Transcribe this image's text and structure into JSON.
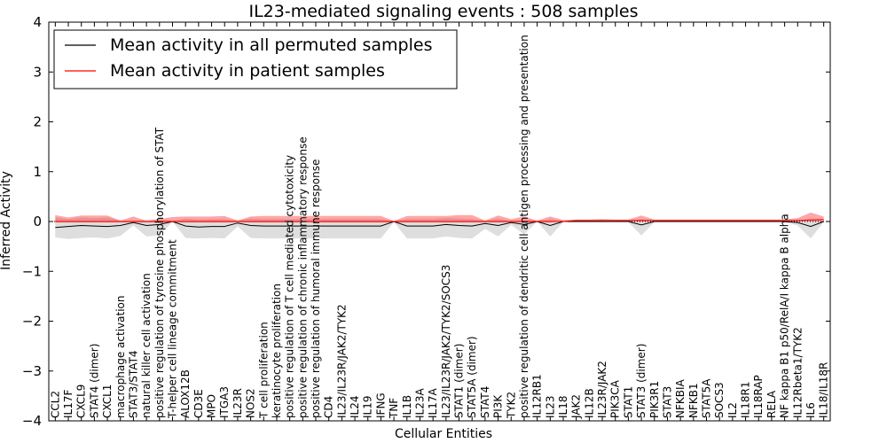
{
  "chart_data": {
    "type": "line",
    "title": "IL23-mediated signaling events : 508 samples",
    "xlabel": "Cellular Entities",
    "ylabel": "Inferred Activity",
    "ylim": [
      -4,
      4
    ],
    "yticks": [
      -4,
      -3,
      -2,
      -1,
      0,
      1,
      2,
      3,
      4
    ],
    "ytick_labels": [
      "−4",
      "−3",
      "−2",
      "−1",
      "0",
      "1",
      "2",
      "3",
      "4"
    ],
    "legend_position": "top-left",
    "categories": [
      "CCL2",
      "IL17F",
      "CXCL9",
      "STAT4 (dimer)",
      "CXCL1",
      "macrophage activation",
      "STAT3/STAT4",
      "natural killer cell activation",
      "positive regulation of tyrosine phosphorylation of STAT",
      "T-helper cell lineage commitment",
      "ALOX12B",
      "CD3E",
      "MPO",
      "ITGA3",
      "IL23R",
      "NOS2",
      "T cell proliferation",
      "keratinocyte proliferation",
      "positive regulation of T cell mediated cytotoxicity",
      "positive regulation of chronic inflammatory response",
      "positive regulation of humoral immune response",
      "CD4",
      "IL23/IL23R/JAK2/TYK2",
      "IL24",
      "IL19",
      "IFNG",
      "TNF",
      "IL1B",
      "IL23A",
      "IL17A",
      "IL23/IL23R/JAK2/TYK2/SOCS3",
      "STAT1 (dimer)",
      "STAT5A (dimer)",
      "STAT4",
      "PI3K",
      "TYK2",
      "positive regulation of dendritic cell antigen processing and presentation",
      "IL12RB1",
      "IL23",
      "IL18",
      "JAK2",
      "IL12B",
      "IL23R/JAK2",
      "PIK3CA",
      "STAT1",
      "STAT3 (dimer)",
      "PIK3R1",
      "STAT3",
      "NFKBIA",
      "NFKB1",
      "STAT5A",
      "SOCS3",
      "IL2",
      "IL18R1",
      "IL18RAP",
      "RELA",
      "NF kappa B1 p50/RelA/I kappa B alpha",
      "IL12Rbeta1/TYK2",
      "IL6",
      "IL18/IL18R"
    ],
    "series": [
      {
        "name": "Mean activity in all permuted samples",
        "color": "#000000",
        "values": [
          -0.12,
          -0.1,
          -0.08,
          -0.09,
          -0.1,
          -0.08,
          -0.02,
          -0.08,
          -0.06,
          0.0,
          -0.09,
          -0.11,
          -0.1,
          -0.1,
          -0.03,
          -0.08,
          -0.09,
          -0.09,
          -0.09,
          -0.09,
          -0.09,
          -0.09,
          -0.09,
          -0.09,
          -0.09,
          -0.09,
          0.0,
          -0.09,
          -0.09,
          -0.09,
          -0.06,
          -0.08,
          -0.09,
          -0.04,
          -0.08,
          -0.02,
          -0.06,
          0.0,
          -0.08,
          0.0,
          0.0,
          0.0,
          0.0,
          0.0,
          0.0,
          -0.07,
          0.0,
          0.0,
          0.0,
          0.0,
          0.0,
          0.0,
          0.0,
          0.0,
          0.0,
          0.0,
          0.0,
          -0.02,
          -0.1,
          0.0
        ],
        "band_low": [
          -0.32,
          -0.35,
          -0.33,
          -0.32,
          -0.34,
          -0.29,
          -0.08,
          -0.3,
          -0.28,
          0.0,
          -0.33,
          -0.34,
          -0.33,
          -0.34,
          -0.1,
          -0.33,
          -0.34,
          -0.34,
          -0.34,
          -0.34,
          -0.34,
          -0.34,
          -0.34,
          -0.34,
          -0.34,
          -0.34,
          -0.01,
          -0.34,
          -0.34,
          -0.34,
          -0.3,
          -0.33,
          -0.34,
          -0.15,
          -0.3,
          -0.07,
          -0.26,
          0.0,
          -0.3,
          -0.01,
          -0.01,
          -0.01,
          -0.01,
          -0.01,
          -0.01,
          -0.28,
          -0.01,
          -0.01,
          -0.01,
          -0.01,
          -0.01,
          -0.01,
          -0.01,
          -0.01,
          -0.01,
          -0.01,
          -0.01,
          -0.08,
          -0.34,
          -0.01
        ],
        "band_high": [
          0.08,
          0.05,
          0.08,
          0.07,
          0.08,
          0.02,
          0.01,
          0.04,
          0.05,
          0.01,
          0.06,
          0.04,
          0.05,
          0.05,
          0.02,
          0.06,
          0.05,
          0.05,
          0.05,
          0.05,
          0.05,
          0.05,
          0.05,
          0.05,
          0.05,
          0.05,
          0.01,
          0.05,
          0.05,
          0.05,
          0.07,
          0.06,
          0.05,
          0.02,
          0.06,
          0.01,
          0.04,
          0.01,
          0.05,
          0.01,
          0.01,
          0.01,
          0.01,
          0.01,
          0.01,
          0.05,
          0.01,
          0.01,
          0.01,
          0.01,
          0.01,
          0.01,
          0.01,
          0.01,
          0.01,
          0.01,
          0.01,
          0.02,
          0.05,
          0.01
        ]
      },
      {
        "name": "Mean activity in patient samples",
        "color": "#ff0000",
        "values": [
          0.0,
          0.0,
          0.0,
          0.0,
          0.0,
          0.0,
          0.0,
          0.0,
          0.0,
          0.0,
          0.0,
          0.0,
          0.0,
          0.0,
          0.0,
          0.0,
          0.0,
          0.0,
          0.0,
          0.0,
          0.0,
          0.0,
          0.0,
          0.0,
          0.0,
          0.0,
          0.0,
          0.0,
          0.0,
          0.0,
          0.0,
          0.0,
          0.0,
          0.0,
          0.0,
          0.0,
          0.0,
          0.0,
          0.0,
          0.0,
          0.02,
          0.02,
          0.02,
          0.02,
          0.02,
          0.02,
          0.02,
          0.02,
          0.02,
          0.02,
          0.02,
          0.02,
          0.02,
          0.02,
          0.02,
          0.02,
          0.02,
          0.02,
          0.03,
          0.04
        ],
        "band_low": [
          -0.02,
          -0.02,
          -0.02,
          -0.02,
          -0.02,
          -0.02,
          -0.02,
          -0.02,
          -0.02,
          -0.02,
          -0.02,
          -0.02,
          -0.02,
          -0.02,
          -0.02,
          -0.02,
          -0.02,
          -0.02,
          -0.02,
          -0.02,
          -0.02,
          -0.02,
          -0.02,
          -0.02,
          -0.02,
          -0.02,
          -0.02,
          -0.02,
          -0.02,
          -0.02,
          -0.02,
          -0.02,
          -0.02,
          -0.02,
          -0.02,
          -0.02,
          -0.02,
          -0.02,
          -0.02,
          0.0,
          0.0,
          0.0,
          0.0,
          0.0,
          0.0,
          0.0,
          0.0,
          0.0,
          0.0,
          0.0,
          0.0,
          0.0,
          0.0,
          0.0,
          0.0,
          0.0,
          0.0,
          0.0,
          0.0,
          0.0
        ],
        "band_high": [
          0.13,
          0.08,
          0.12,
          0.12,
          0.12,
          0.02,
          0.1,
          0.01,
          0.05,
          0.09,
          0.1,
          0.1,
          0.1,
          0.11,
          0.02,
          0.1,
          0.11,
          0.11,
          0.11,
          0.11,
          0.11,
          0.11,
          0.11,
          0.11,
          0.11,
          0.11,
          0.01,
          0.11,
          0.11,
          0.11,
          0.11,
          0.13,
          0.13,
          0.02,
          0.12,
          0.05,
          0.1,
          0.02,
          0.1,
          0.03,
          0.04,
          0.04,
          0.05,
          0.04,
          0.04,
          0.12,
          0.04,
          0.04,
          0.04,
          0.04,
          0.04,
          0.04,
          0.04,
          0.04,
          0.04,
          0.04,
          0.04,
          0.07,
          0.18,
          0.1
        ]
      }
    ]
  }
}
